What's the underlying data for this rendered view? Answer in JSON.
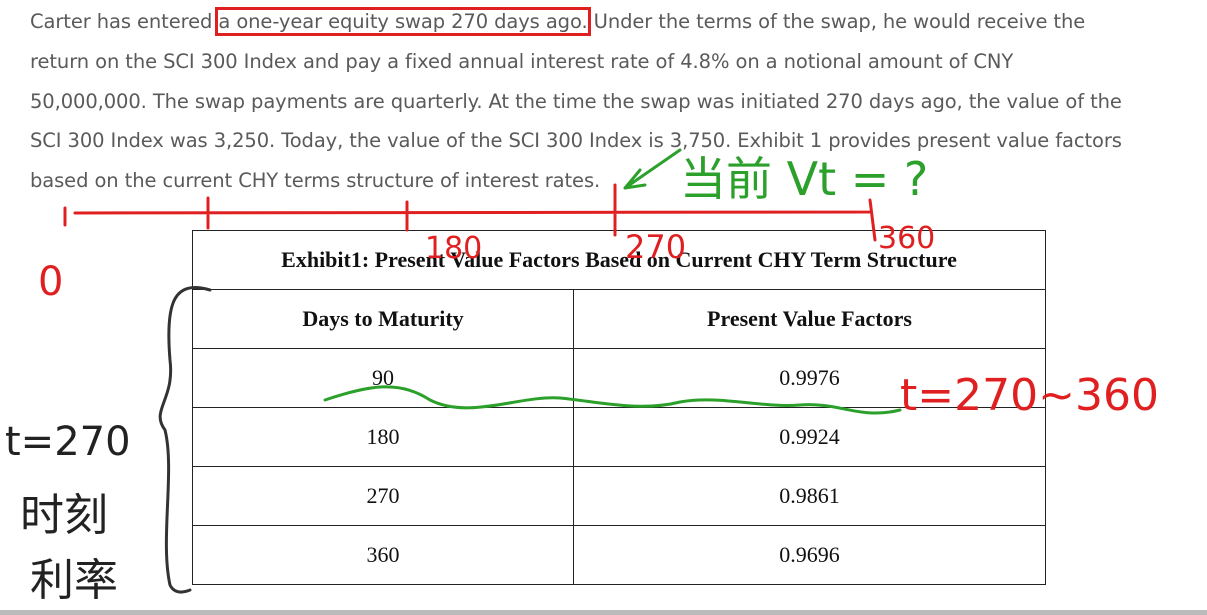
{
  "paragraph": {
    "line0_before": "Carter has entered",
    "line0_highlight": "a one-year equity swap 270 days ago.",
    "line0_after": "Under the terms of the swap, he would receive the",
    "lines": [
      "return on the SCI 300 Index and pay a fixed annual interest rate of 4.8% on a notional amount of CNY",
      "50,000,000. The swap payments are quarterly. At the time the swap was initiated 270 days ago, the value of the",
      "SCI 300 Index was 3,250. Today, the value of the SCI 300 Index is 3,750. Exhibit 1 provides present value factors",
      "based on the current CHY terms structure of interest rates."
    ]
  },
  "table": {
    "title": "Exhibit1: Present Value Factors Based on Current CHY Term Structure",
    "header": [
      "Days to Maturity",
      "Present Value Factors"
    ],
    "rows": [
      [
        "90",
        "0.9976"
      ],
      [
        "180",
        "0.9924"
      ],
      [
        "270",
        "0.9861"
      ],
      [
        "360",
        "0.9696"
      ]
    ]
  },
  "annotations": {
    "timeline": [
      "0",
      "180",
      "270",
      "360"
    ],
    "current_value": "当前 Vt = ?",
    "range": "t=270~360",
    "side_note": [
      "t=270",
      "时刻",
      "利率"
    ]
  }
}
